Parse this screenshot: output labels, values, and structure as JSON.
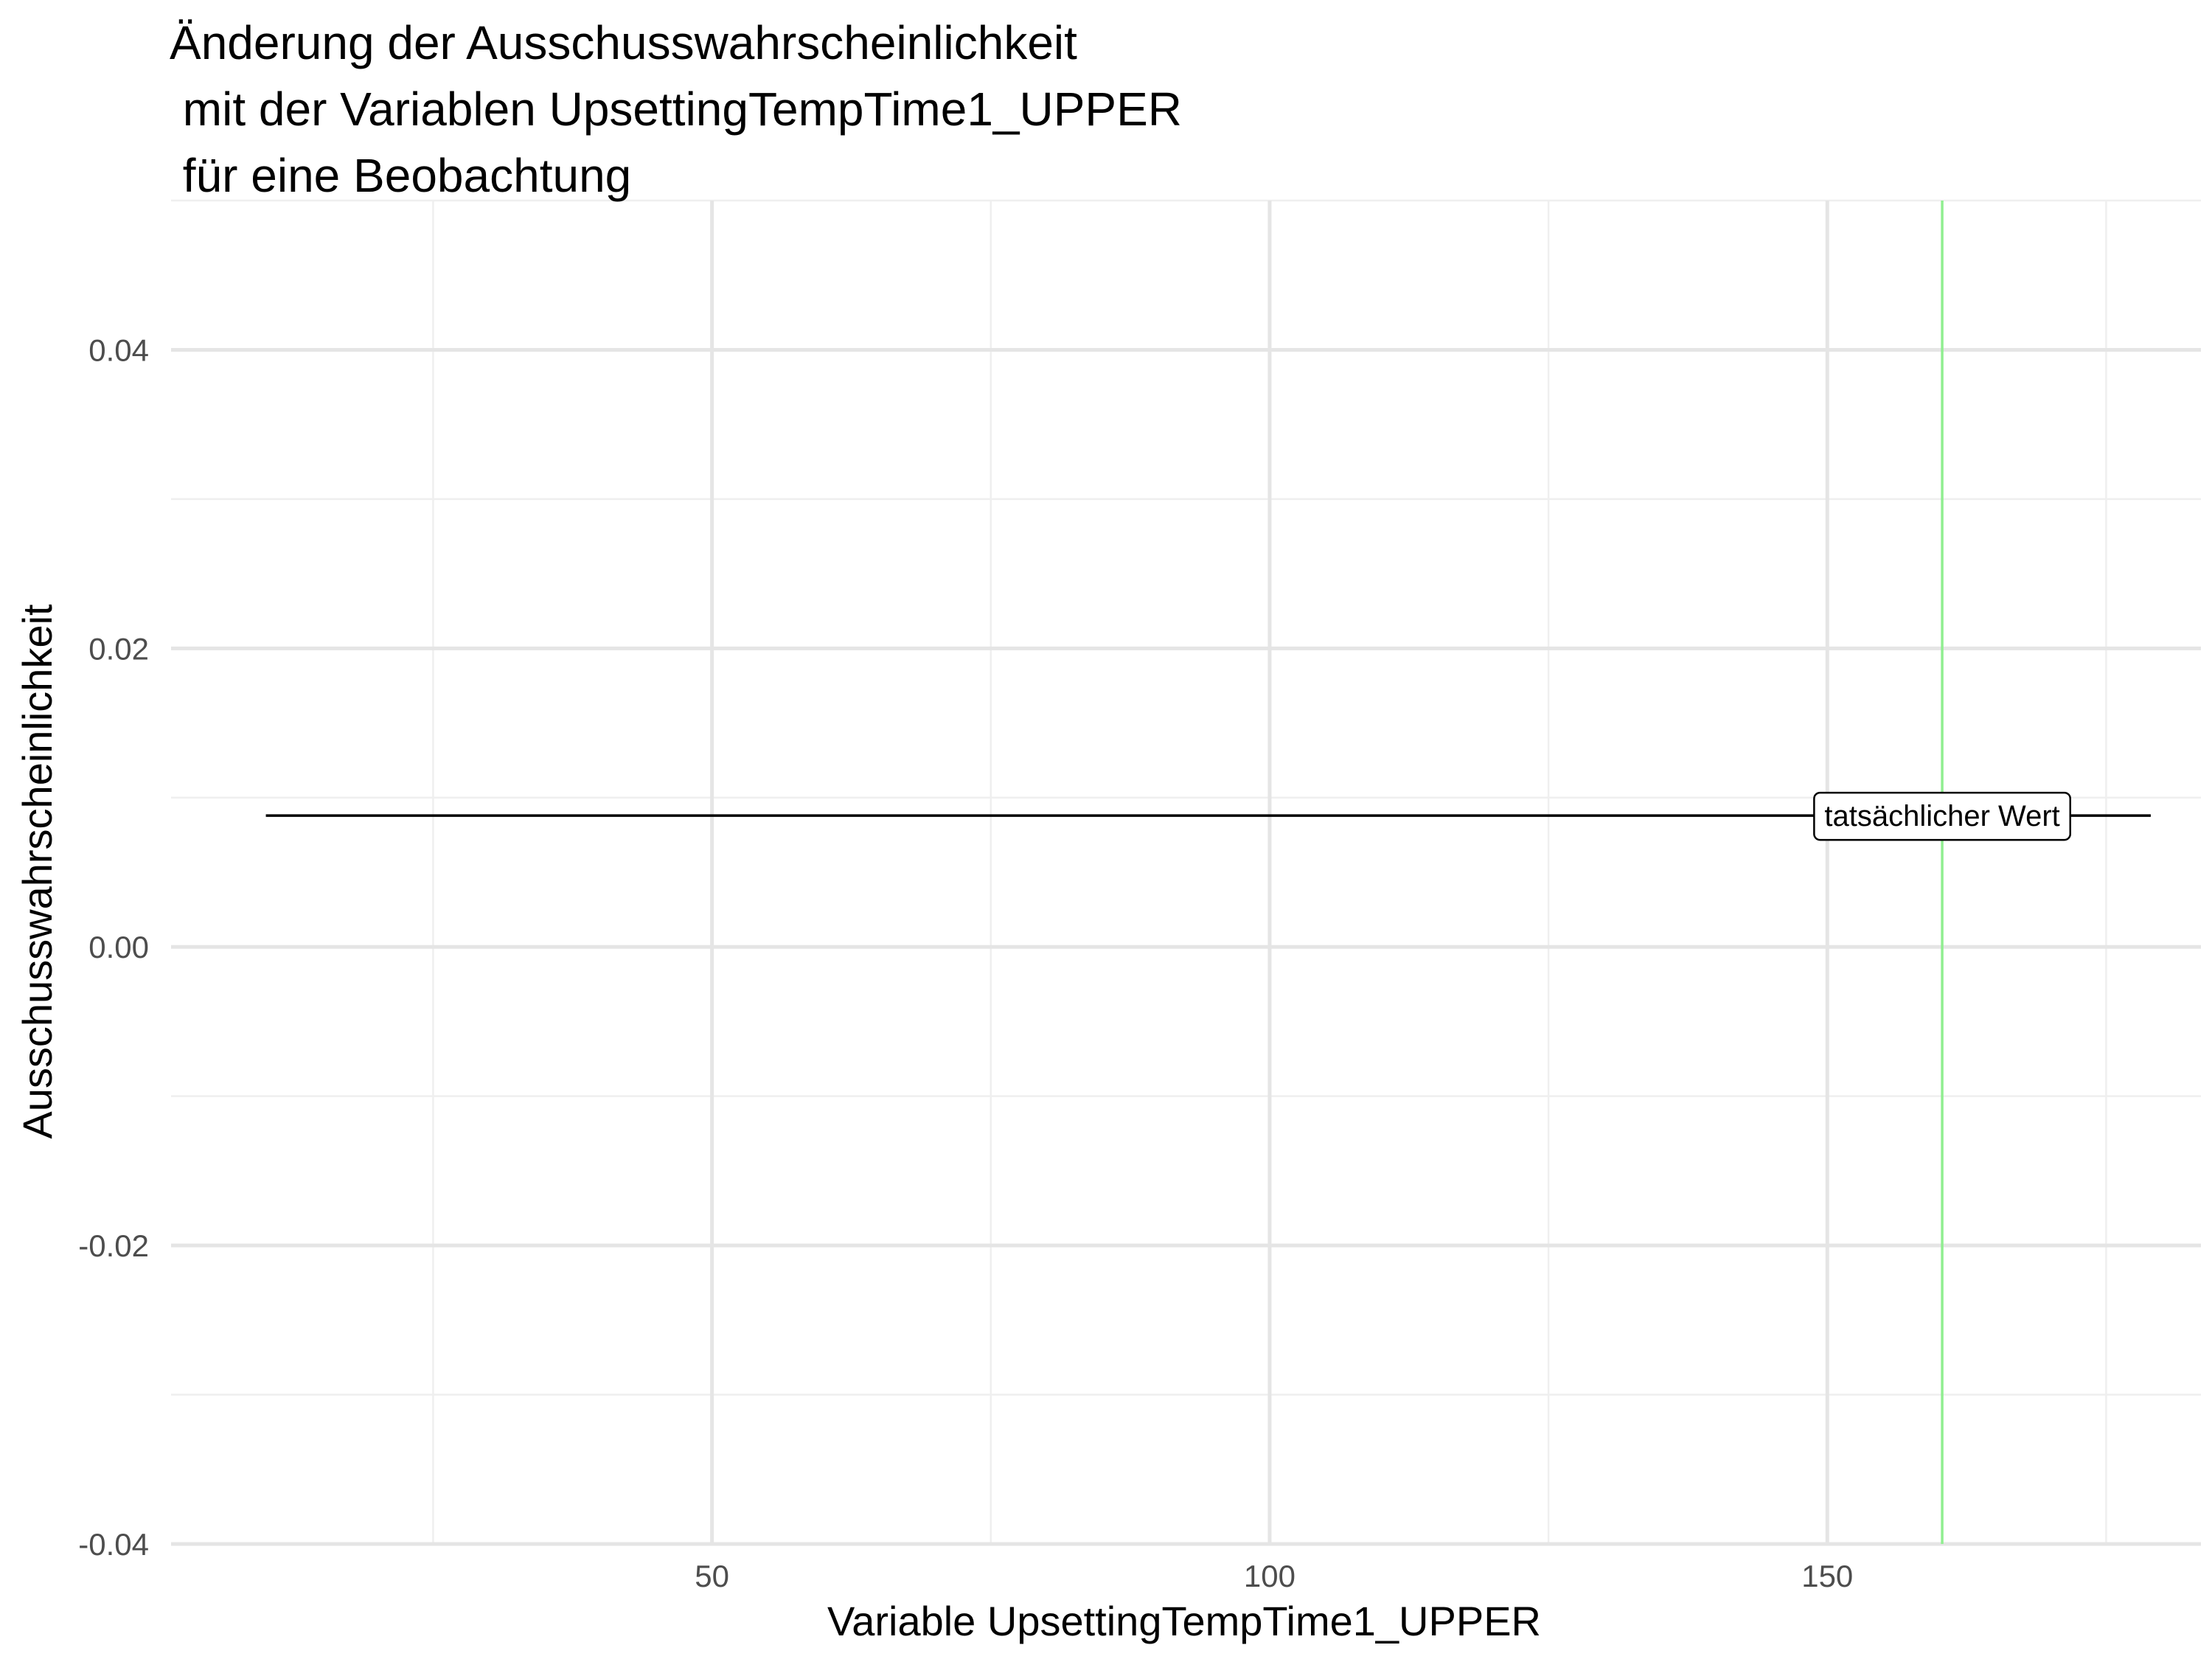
{
  "chart_data": {
    "type": "line",
    "title_lines": [
      "Änderung der Ausschusswahrscheinlichkeit",
      " mit der Variablen UpsettingTempTime1_UPPER",
      " für eine Beobachtung"
    ],
    "xlabel": "Variable UpsettingTempTime1_UPPER",
    "ylabel": "Ausschusswahrscheinlichkeit",
    "xlim": [
      1.5,
      183.5
    ],
    "ylim": [
      -0.04,
      0.05
    ],
    "x_major_ticks": [
      50,
      100,
      150
    ],
    "x_tick_labels": [
      "50",
      "100",
      "150"
    ],
    "x_minor_ticks": [
      25,
      75,
      125,
      175
    ],
    "y_major_ticks": [
      -0.04,
      -0.02,
      0.0,
      0.02,
      0.04
    ],
    "y_tick_labels": [
      "-0.04",
      "-0.02",
      "0.00",
      "0.02",
      "0.04"
    ],
    "y_minor_ticks": [
      -0.03,
      -0.01,
      0.01,
      0.03,
      0.05
    ],
    "grid": true,
    "series": [
      {
        "x": [
          10,
          179
        ],
        "y": [
          0.0088,
          0.0088
        ],
        "color": "#000000"
      }
    ],
    "reference_line": {
      "x": 160.3,
      "color": "#90ee90"
    },
    "annotation": {
      "text": "tatsächlicher Wert",
      "x": 160.3,
      "y": 0.0088
    }
  }
}
